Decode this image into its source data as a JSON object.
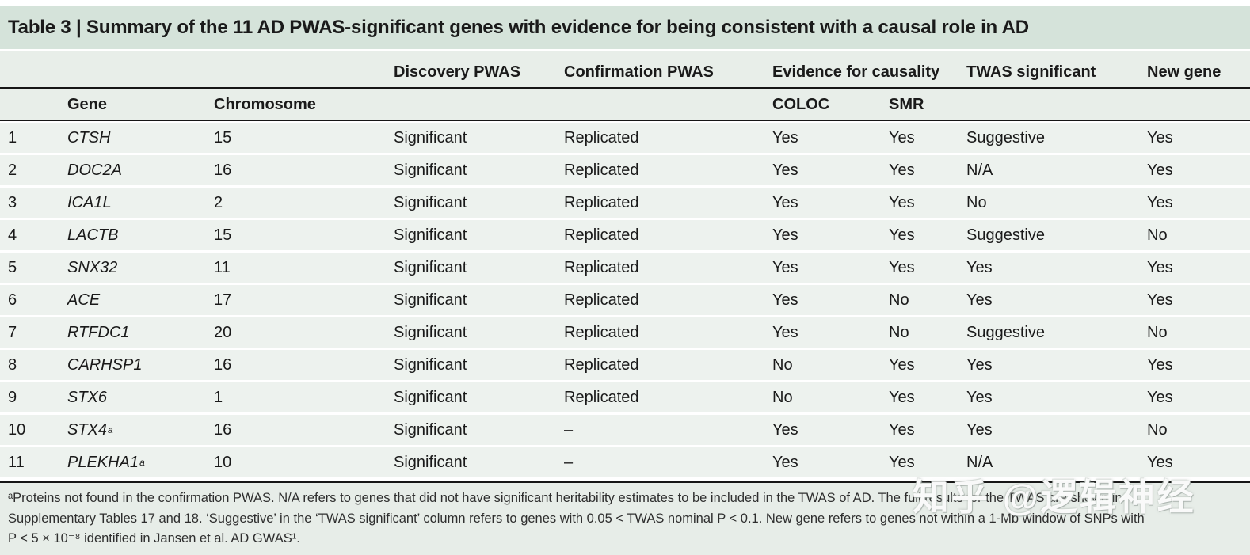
{
  "title": "Table 3 | Summary of the 11 AD PWAS-significant genes with evidence for being consistent with a causal role in AD",
  "table": {
    "header_row1": {
      "discovery": "Discovery PWAS",
      "confirmation": "Confirmation PWAS",
      "evidence": "Evidence for causality",
      "twas": "TWAS significant",
      "new_gene": "New gene"
    },
    "header_row2": {
      "gene": "Gene",
      "chromosome": "Chromosome",
      "coloc": "COLOC",
      "smr": "SMR"
    },
    "rows": [
      {
        "num": "1",
        "gene": "CTSH",
        "gene_sup": "",
        "chromosome": "15",
        "discovery": "Significant",
        "confirmation": "Replicated",
        "coloc": "Yes",
        "smr": "Yes",
        "twas": "Suggestive",
        "new_gene": "Yes"
      },
      {
        "num": "2",
        "gene": "DOC2A",
        "gene_sup": "",
        "chromosome": "16",
        "discovery": "Significant",
        "confirmation": "Replicated",
        "coloc": "Yes",
        "smr": "Yes",
        "twas": "N/A",
        "new_gene": "Yes"
      },
      {
        "num": "3",
        "gene": "ICA1L",
        "gene_sup": "",
        "chromosome": "2",
        "discovery": "Significant",
        "confirmation": "Replicated",
        "coloc": "Yes",
        "smr": "Yes",
        "twas": "No",
        "new_gene": "Yes"
      },
      {
        "num": "4",
        "gene": "LACTB",
        "gene_sup": "",
        "chromosome": "15",
        "discovery": "Significant",
        "confirmation": "Replicated",
        "coloc": "Yes",
        "smr": "Yes",
        "twas": "Suggestive",
        "new_gene": "No"
      },
      {
        "num": "5",
        "gene": "SNX32",
        "gene_sup": "",
        "chromosome": "11",
        "discovery": "Significant",
        "confirmation": "Replicated",
        "coloc": "Yes",
        "smr": "Yes",
        "twas": "Yes",
        "new_gene": "Yes"
      },
      {
        "num": "6",
        "gene": "ACE",
        "gene_sup": "",
        "chromosome": "17",
        "discovery": "Significant",
        "confirmation": "Replicated",
        "coloc": "Yes",
        "smr": "No",
        "twas": "Yes",
        "new_gene": "Yes"
      },
      {
        "num": "7",
        "gene": "RTFDC1",
        "gene_sup": "",
        "chromosome": "20",
        "discovery": "Significant",
        "confirmation": "Replicated",
        "coloc": "Yes",
        "smr": "No",
        "twas": "Suggestive",
        "new_gene": "No"
      },
      {
        "num": "8",
        "gene": "CARHSP1",
        "gene_sup": "",
        "chromosome": "16",
        "discovery": "Significant",
        "confirmation": "Replicated",
        "coloc": "No",
        "smr": "Yes",
        "twas": "Yes",
        "new_gene": "Yes"
      },
      {
        "num": "9",
        "gene": "STX6",
        "gene_sup": "",
        "chromosome": "1",
        "discovery": "Significant",
        "confirmation": "Replicated",
        "coloc": "No",
        "smr": "Yes",
        "twas": "Yes",
        "new_gene": "Yes"
      },
      {
        "num": "10",
        "gene": "STX4",
        "gene_sup": "a",
        "chromosome": "16",
        "discovery": "Significant",
        "confirmation": "–",
        "coloc": "Yes",
        "smr": "Yes",
        "twas": "Yes",
        "new_gene": "No"
      },
      {
        "num": "11",
        "gene": "PLEKHA1",
        "gene_sup": "a",
        "chromosome": "10",
        "discovery": "Significant",
        "confirmation": "–",
        "coloc": "Yes",
        "smr": "Yes",
        "twas": "N/A",
        "new_gene": "Yes"
      }
    ]
  },
  "footnote": {
    "lines": [
      "ᵃProteins not found in the confirmation PWAS. N/A refers to genes that did not have significant heritability estimates to be included in the TWAS of AD. The full results for the TWAS are shown in",
      "Supplementary Tables 17 and 18. ‘Suggestive’ in the ‘TWAS significant’ column refers to genes with 0.05 < TWAS nominal P < 0.1. New gene refers to genes not within a 1-Mb window of SNPs with",
      "P < 5 × 10⁻⁸ identified in Jansen et al. AD GWAS¹."
    ]
  },
  "watermark": "知乎 @逻辑神经",
  "colors": {
    "title_band_bg": "#d5e3da",
    "header_band_bg": "#e8eee9",
    "row_bg": "#edf2ee",
    "footnote_bg": "#e7ede8",
    "rule": "#161616",
    "text": "#1a1a1a"
  }
}
